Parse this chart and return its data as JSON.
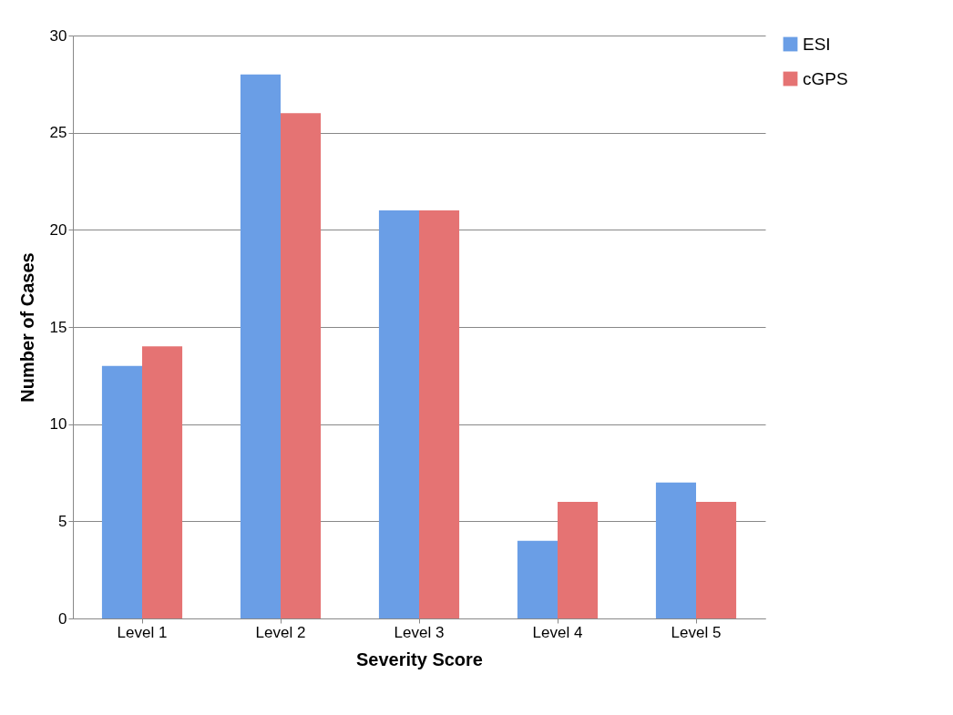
{
  "chart_data": {
    "type": "bar",
    "xlabel": "Severity Score",
    "ylabel": "Number of Cases",
    "categories": [
      "Level 1",
      "Level 2",
      "Level 3",
      "Level 4",
      "Level 5"
    ],
    "series": [
      {
        "name": "ESI",
        "color": "#6a9ee6",
        "values": [
          13,
          28,
          21,
          4,
          7
        ]
      },
      {
        "name": "cGPS",
        "color": "#e57373",
        "values": [
          14,
          26,
          21,
          6,
          6
        ]
      }
    ],
    "ylim": [
      0,
      30
    ],
    "yticks": [
      0,
      5,
      10,
      15,
      20,
      25,
      30
    ],
    "grid": "y",
    "legend": "right"
  }
}
